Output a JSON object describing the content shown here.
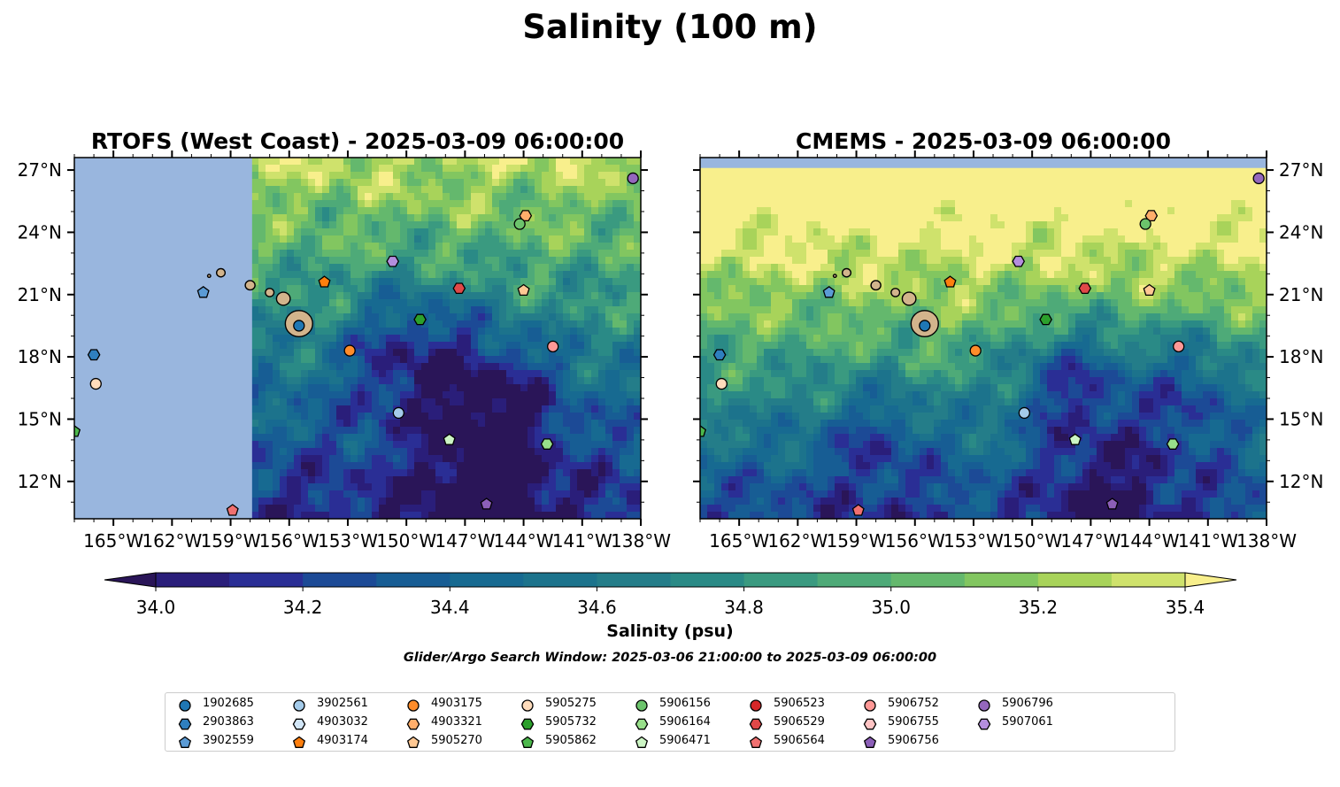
{
  "suptitle": "Salinity (100 m)",
  "colorbar": {
    "label": "Salinity (psu)",
    "ticks": [
      "34.0",
      "34.2",
      "34.4",
      "34.6",
      "34.8",
      "35.0",
      "35.2",
      "35.4"
    ],
    "levels": [
      34.0,
      34.1,
      34.2,
      34.3,
      34.4,
      34.5,
      34.6,
      34.7,
      34.8,
      34.9,
      35.0,
      35.1,
      35.2,
      35.3,
      35.4
    ],
    "colors": [
      "#2a1e7a",
      "#2a2e95",
      "#1c4a96",
      "#175d94",
      "#176a91",
      "#1c738c",
      "#247d89",
      "#2a8a86",
      "#3a9a80",
      "#4eaa78",
      "#64b86d",
      "#82c660",
      "#a8d35a",
      "#cfe26c"
    ],
    "under_color": "#2a1558",
    "over_color": "#f8ef8c"
  },
  "search_window": "Glider/Argo Search Window: 2025-03-06 21:00:00 to 2025-03-09 06:00:00",
  "chart_data": [
    {
      "type": "heatmap",
      "title": "RTOFS (West Coast) - 2025-03-09 06:00:00",
      "xlabel": "",
      "ylabel": "",
      "xlim": [
        -167,
        -138
      ],
      "ylim": [
        10.2,
        27.6
      ],
      "x_ticks": [
        "165°W",
        "162°W",
        "159°W",
        "156°W",
        "153°W",
        "150°W",
        "147°W",
        "144°W",
        "141°W",
        "138°W"
      ],
      "y_ticks": [
        "27°N",
        "24°N",
        "21°N",
        "18°N",
        "15°N",
        "12°N"
      ],
      "y_tick_side": "left",
      "no_data_west_of": -157.9,
      "no_data_color": "#99b6de",
      "field": {
        "base": 34.65,
        "lat_gradient": 0.07,
        "amplitude": 0.34,
        "lows": [
          [
            -149.5,
            18.0,
            0.55,
            3.5
          ],
          [
            -145.0,
            16.0,
            0.5,
            3.0
          ],
          [
            -146.0,
            11.5,
            0.45,
            3.0
          ]
        ]
      },
      "floats": [
        {
          "id": "1902685",
          "lon": -155.5,
          "lat": 19.5
        },
        {
          "id": "2903863",
          "lon": -166.0,
          "lat": 18.1
        },
        {
          "id": "3902559",
          "lon": -160.4,
          "lat": 21.1
        },
        {
          "id": "3902561",
          "lon": -150.4,
          "lat": 15.3
        },
        {
          "id": "4903174",
          "lon": -154.2,
          "lat": 21.6
        },
        {
          "id": "4903175",
          "lon": -152.9,
          "lat": 18.3
        },
        {
          "id": "4903321",
          "lon": -143.9,
          "lat": 24.8
        },
        {
          "id": "5905270",
          "lon": -144.0,
          "lat": 21.2
        },
        {
          "id": "5905275",
          "lon": -165.9,
          "lat": 16.7
        },
        {
          "id": "5905732",
          "lon": -149.3,
          "lat": 19.8
        },
        {
          "id": "5905862",
          "lon": -167.0,
          "lat": 14.4
        },
        {
          "id": "5906156",
          "lon": -144.2,
          "lat": 24.4
        },
        {
          "id": "5906164",
          "lon": -142.8,
          "lat": 13.8
        },
        {
          "id": "5906471",
          "lon": -147.8,
          "lat": 14.0
        },
        {
          "id": "5906529",
          "lon": -147.3,
          "lat": 21.3
        },
        {
          "id": "5906564",
          "lon": -158.9,
          "lat": 10.6
        },
        {
          "id": "5906752",
          "lon": -142.5,
          "lat": 18.5
        },
        {
          "id": "5906756",
          "lon": -145.9,
          "lat": 10.9
        },
        {
          "id": "5906796",
          "lon": -138.4,
          "lat": 26.6
        },
        {
          "id": "5907061",
          "lon": -150.7,
          "lat": 22.6
        }
      ]
    },
    {
      "type": "heatmap",
      "title": "CMEMS - 2025-03-09 06:00:00",
      "xlabel": "",
      "ylabel": "",
      "xlim": [
        -167,
        -138
      ],
      "ylim": [
        10.2,
        27.6
      ],
      "x_ticks": [
        "165°W",
        "162°W",
        "159°W",
        "156°W",
        "153°W",
        "150°W",
        "147°W",
        "144°W",
        "141°W",
        "138°W"
      ],
      "y_ticks": [
        "27°N",
        "24°N",
        "21°N",
        "18°N",
        "15°N",
        "12°N"
      ],
      "y_tick_side": "right",
      "no_data_north_of": 27.1,
      "no_data_color": "#99b6de",
      "field": {
        "base": 34.95,
        "lat_gradient": 0.09,
        "amplitude": 0.3,
        "lows": [
          [
            -148.0,
            17.0,
            0.55,
            3.0
          ],
          [
            -142.0,
            16.5,
            0.45,
            3.2
          ],
          [
            -146.0,
            12.0,
            0.35,
            3.5
          ],
          [
            -158.0,
            14.0,
            0.3,
            3.0
          ]
        ]
      },
      "floats": [
        {
          "id": "1902685",
          "lon": -155.5,
          "lat": 19.5
        },
        {
          "id": "2903863",
          "lon": -166.0,
          "lat": 18.1
        },
        {
          "id": "3902559",
          "lon": -160.4,
          "lat": 21.1
        },
        {
          "id": "3902561",
          "lon": -150.4,
          "lat": 15.3
        },
        {
          "id": "4903174",
          "lon": -154.2,
          "lat": 21.6
        },
        {
          "id": "4903175",
          "lon": -152.9,
          "lat": 18.3
        },
        {
          "id": "4903321",
          "lon": -143.9,
          "lat": 24.8
        },
        {
          "id": "5905270",
          "lon": -144.0,
          "lat": 21.2
        },
        {
          "id": "5905275",
          "lon": -165.9,
          "lat": 16.7
        },
        {
          "id": "5905732",
          "lon": -149.3,
          "lat": 19.8
        },
        {
          "id": "5905862",
          "lon": -167.0,
          "lat": 14.4
        },
        {
          "id": "5906156",
          "lon": -144.2,
          "lat": 24.4
        },
        {
          "id": "5906164",
          "lon": -142.8,
          "lat": 13.8
        },
        {
          "id": "5906471",
          "lon": -147.8,
          "lat": 14.0
        },
        {
          "id": "5906529",
          "lon": -147.3,
          "lat": 21.3
        },
        {
          "id": "5906564",
          "lon": -158.9,
          "lat": 10.6
        },
        {
          "id": "5906752",
          "lon": -142.5,
          "lat": 18.5
        },
        {
          "id": "5906756",
          "lon": -145.9,
          "lat": 10.9
        },
        {
          "id": "5906796",
          "lon": -138.4,
          "lat": 26.6
        },
        {
          "id": "5907061",
          "lon": -150.7,
          "lat": 22.6
        }
      ]
    }
  ],
  "legend": {
    "columns": 9,
    "entries": [
      {
        "id": "1902685",
        "marker": "circle",
        "color": "#1f77b4"
      },
      {
        "id": "2903863",
        "marker": "hexagon",
        "color": "#2f7fbf"
      },
      {
        "id": "3902559",
        "marker": "pentagon",
        "color": "#5b9bd5"
      },
      {
        "id": "3902561",
        "marker": "circle",
        "color": "#a4cbea"
      },
      {
        "id": "4903032",
        "marker": "hexagon",
        "color": "#d2e6f7"
      },
      {
        "id": "4903174",
        "marker": "pentagon",
        "color": "#ff7f0e"
      },
      {
        "id": "4903175",
        "marker": "circle",
        "color": "#ff8c2a"
      },
      {
        "id": "4903321",
        "marker": "hexagon",
        "color": "#ffae6b"
      },
      {
        "id": "5905270",
        "marker": "pentagon",
        "color": "#ffc893"
      },
      {
        "id": "5905275",
        "marker": "circle",
        "color": "#ffdcbc"
      },
      {
        "id": "5905732",
        "marker": "hexagon",
        "color": "#2ca02c"
      },
      {
        "id": "5905862",
        "marker": "pentagon",
        "color": "#4cb84c"
      },
      {
        "id": "5906156",
        "marker": "circle",
        "color": "#6cc46c"
      },
      {
        "id": "5906164",
        "marker": "hexagon",
        "color": "#98df8a"
      },
      {
        "id": "5906471",
        "marker": "pentagon",
        "color": "#ccf5c4"
      },
      {
        "id": "5906523",
        "marker": "circle",
        "color": "#d62728"
      },
      {
        "id": "5906529",
        "marker": "hexagon",
        "color": "#e04848"
      },
      {
        "id": "5906564",
        "marker": "pentagon",
        "color": "#f07070"
      },
      {
        "id": "5906752",
        "marker": "circle",
        "color": "#ff9896"
      },
      {
        "id": "5906755",
        "marker": "hexagon",
        "color": "#ffc4c4"
      },
      {
        "id": "5906756",
        "marker": "pentagon",
        "color": "#8c5fb8"
      },
      {
        "id": "5906796",
        "marker": "circle",
        "color": "#9467bd"
      },
      {
        "id": "5907061",
        "marker": "hexagon",
        "color": "#b48ede"
      }
    ]
  },
  "islands": [
    {
      "lon": -155.5,
      "lat": 19.6,
      "r": 0.7
    },
    {
      "lon": -156.3,
      "lat": 20.8,
      "r": 0.35
    },
    {
      "lon": -157.0,
      "lat": 21.1,
      "r": 0.22
    },
    {
      "lon": -158.0,
      "lat": 21.45,
      "r": 0.25
    },
    {
      "lon": -159.5,
      "lat": 22.05,
      "r": 0.22
    },
    {
      "lon": -160.1,
      "lat": 21.9,
      "r": 0.08
    }
  ]
}
